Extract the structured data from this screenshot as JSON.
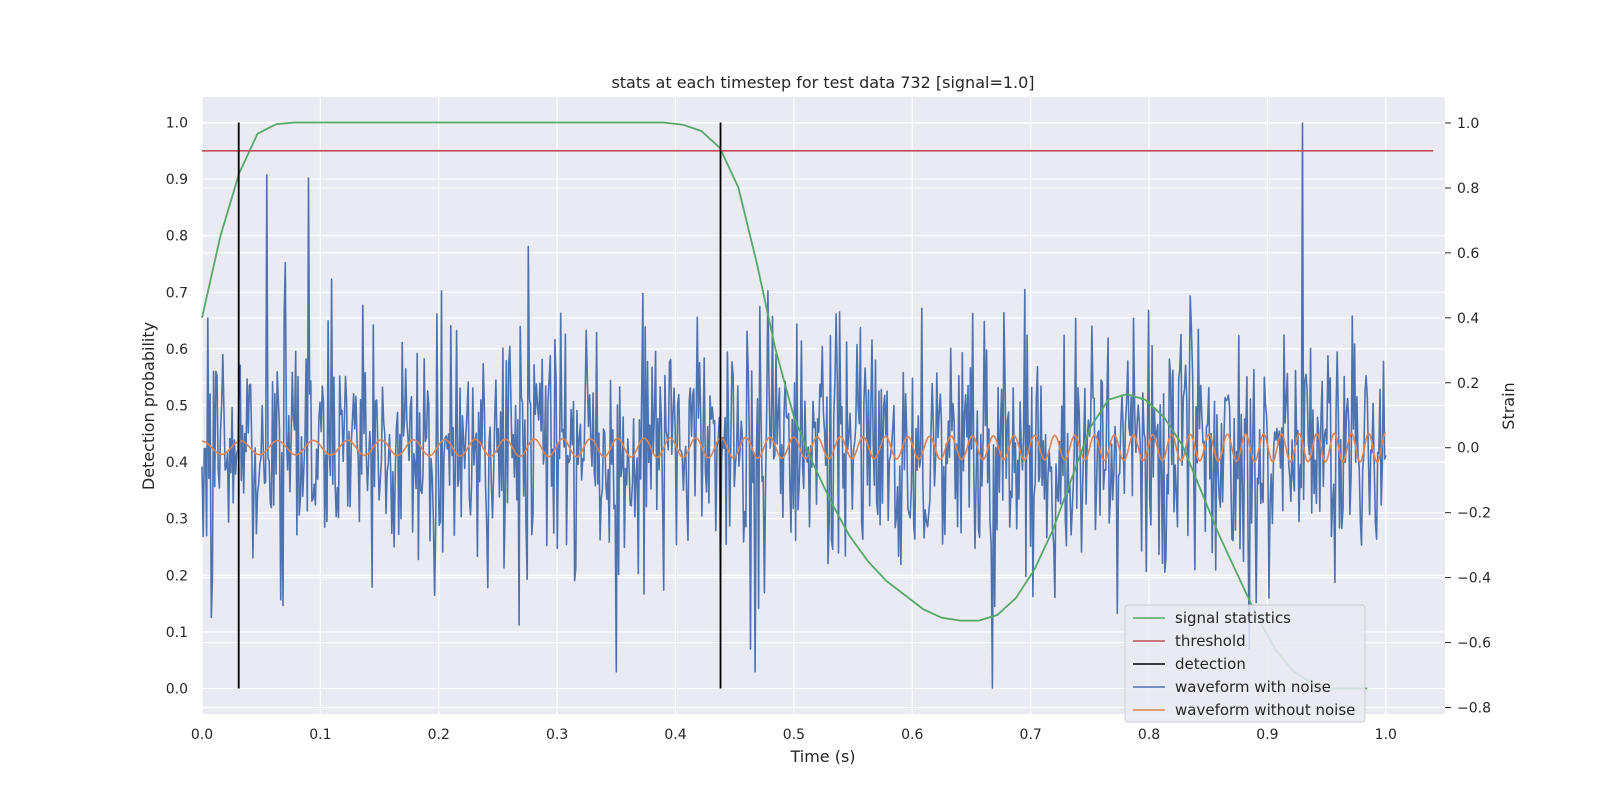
{
  "chart_data": {
    "type": "line",
    "title": "stats at each timestep for test data 732 [signal=1.0]",
    "xlabel": "Time (s)",
    "ylabel_left": "Detection probability",
    "ylabel_right": "Strain",
    "xlim": [
      0.0,
      1.05
    ],
    "ylim_left": [
      -0.045,
      1.045
    ],
    "ylim_right": [
      -0.82,
      1.08
    ],
    "x_ticks": [
      0.0,
      0.1,
      0.2,
      0.3,
      0.4,
      0.5,
      0.6,
      0.7,
      0.8,
      0.9,
      1.0
    ],
    "x_tick_labels": [
      "0.0",
      "0.1",
      "0.2",
      "0.3",
      "0.4",
      "0.5",
      "0.6",
      "0.7",
      "0.8",
      "0.9",
      "1.0"
    ],
    "y_left_ticks": [
      0.0,
      0.1,
      0.2,
      0.3,
      0.4,
      0.5,
      0.6,
      0.7,
      0.8,
      0.9,
      1.0
    ],
    "y_left_tick_labels": [
      "0.0",
      "0.1",
      "0.2",
      "0.3",
      "0.4",
      "0.5",
      "0.6",
      "0.7",
      "0.8",
      "0.9",
      "1.0"
    ],
    "y_right_ticks": [
      -0.8,
      -0.6,
      -0.4,
      -0.2,
      0.0,
      0.2,
      0.4,
      0.6,
      0.8,
      1.0
    ],
    "y_right_tick_labels": [
      "−0.8",
      "−0.6",
      "−0.4",
      "−0.2",
      "0.0",
      "0.2",
      "0.4",
      "0.6",
      "0.8",
      "1.0"
    ],
    "grid": true,
    "legend_position": "bottom-right",
    "background_color": "#eaeaf2",
    "series": [
      {
        "name": "signal statistics",
        "axis": "left",
        "color": "#55a868",
        "x": [
          0.0,
          0.0156,
          0.0313,
          0.0469,
          0.0625,
          0.0781,
          0.1,
          0.2,
          0.3,
          0.39,
          0.4063,
          0.4219,
          0.4375,
          0.4531,
          0.4688,
          0.4844,
          0.5,
          0.5156,
          0.5313,
          0.5469,
          0.5625,
          0.5781,
          0.5938,
          0.6094,
          0.625,
          0.6406,
          0.6563,
          0.6719,
          0.6875,
          0.7031,
          0.7188,
          0.7344,
          0.75,
          0.7656,
          0.7813,
          0.7969,
          0.8125,
          0.8281,
          0.8438,
          0.8594,
          0.875,
          0.8906,
          0.9063,
          0.9219,
          0.9375,
          0.9531,
          0.9688,
          0.9844
        ],
        "y": [
          0.655,
          0.8,
          0.91,
          0.98,
          0.997,
          1.0,
          1.0,
          1.0,
          1.0,
          1.0,
          0.996,
          0.985,
          0.955,
          0.885,
          0.75,
          0.6,
          0.48,
          0.4,
          0.33,
          0.27,
          0.225,
          0.19,
          0.165,
          0.14,
          0.125,
          0.12,
          0.12,
          0.13,
          0.16,
          0.21,
          0.28,
          0.37,
          0.46,
          0.51,
          0.52,
          0.51,
          0.48,
          0.43,
          0.35,
          0.27,
          0.2,
          0.13,
          0.07,
          0.03,
          0.01,
          0.0,
          0.0,
          0.0
        ]
      },
      {
        "name": "threshold",
        "axis": "left",
        "color": "#c44e52",
        "x": [
          0.0,
          1.04
        ],
        "y": [
          0.95,
          0.95
        ]
      },
      {
        "name": "detection",
        "axis": "left",
        "color": "#000000",
        "x_positions": [
          0.031,
          0.438
        ],
        "y": [
          0.0,
          1.0
        ]
      },
      {
        "name": "waveform with noise",
        "axis": "right",
        "color": "#4c72b0",
        "x_range": [
          0.0,
          1.0
        ],
        "points": 1024,
        "approx_std": 0.19,
        "peaks": [
          {
            "x": 0.055,
            "y": 0.84
          },
          {
            "x": 0.09,
            "y": 0.83
          },
          {
            "x": 0.93,
            "y": 1.0
          },
          {
            "x": 0.35,
            "y": -0.69
          },
          {
            "x": 0.668,
            "y": -0.74
          },
          {
            "x": 0.467,
            "y": -0.69
          }
        ]
      },
      {
        "name": "waveform without noise",
        "axis": "right",
        "color": "#dd8452",
        "x_range": [
          0.0,
          1.0
        ],
        "amplitude_start": 0.02,
        "amplitude_end": 0.045,
        "frequency_start_hz": 30,
        "frequency_end_hz": 70
      }
    ]
  }
}
